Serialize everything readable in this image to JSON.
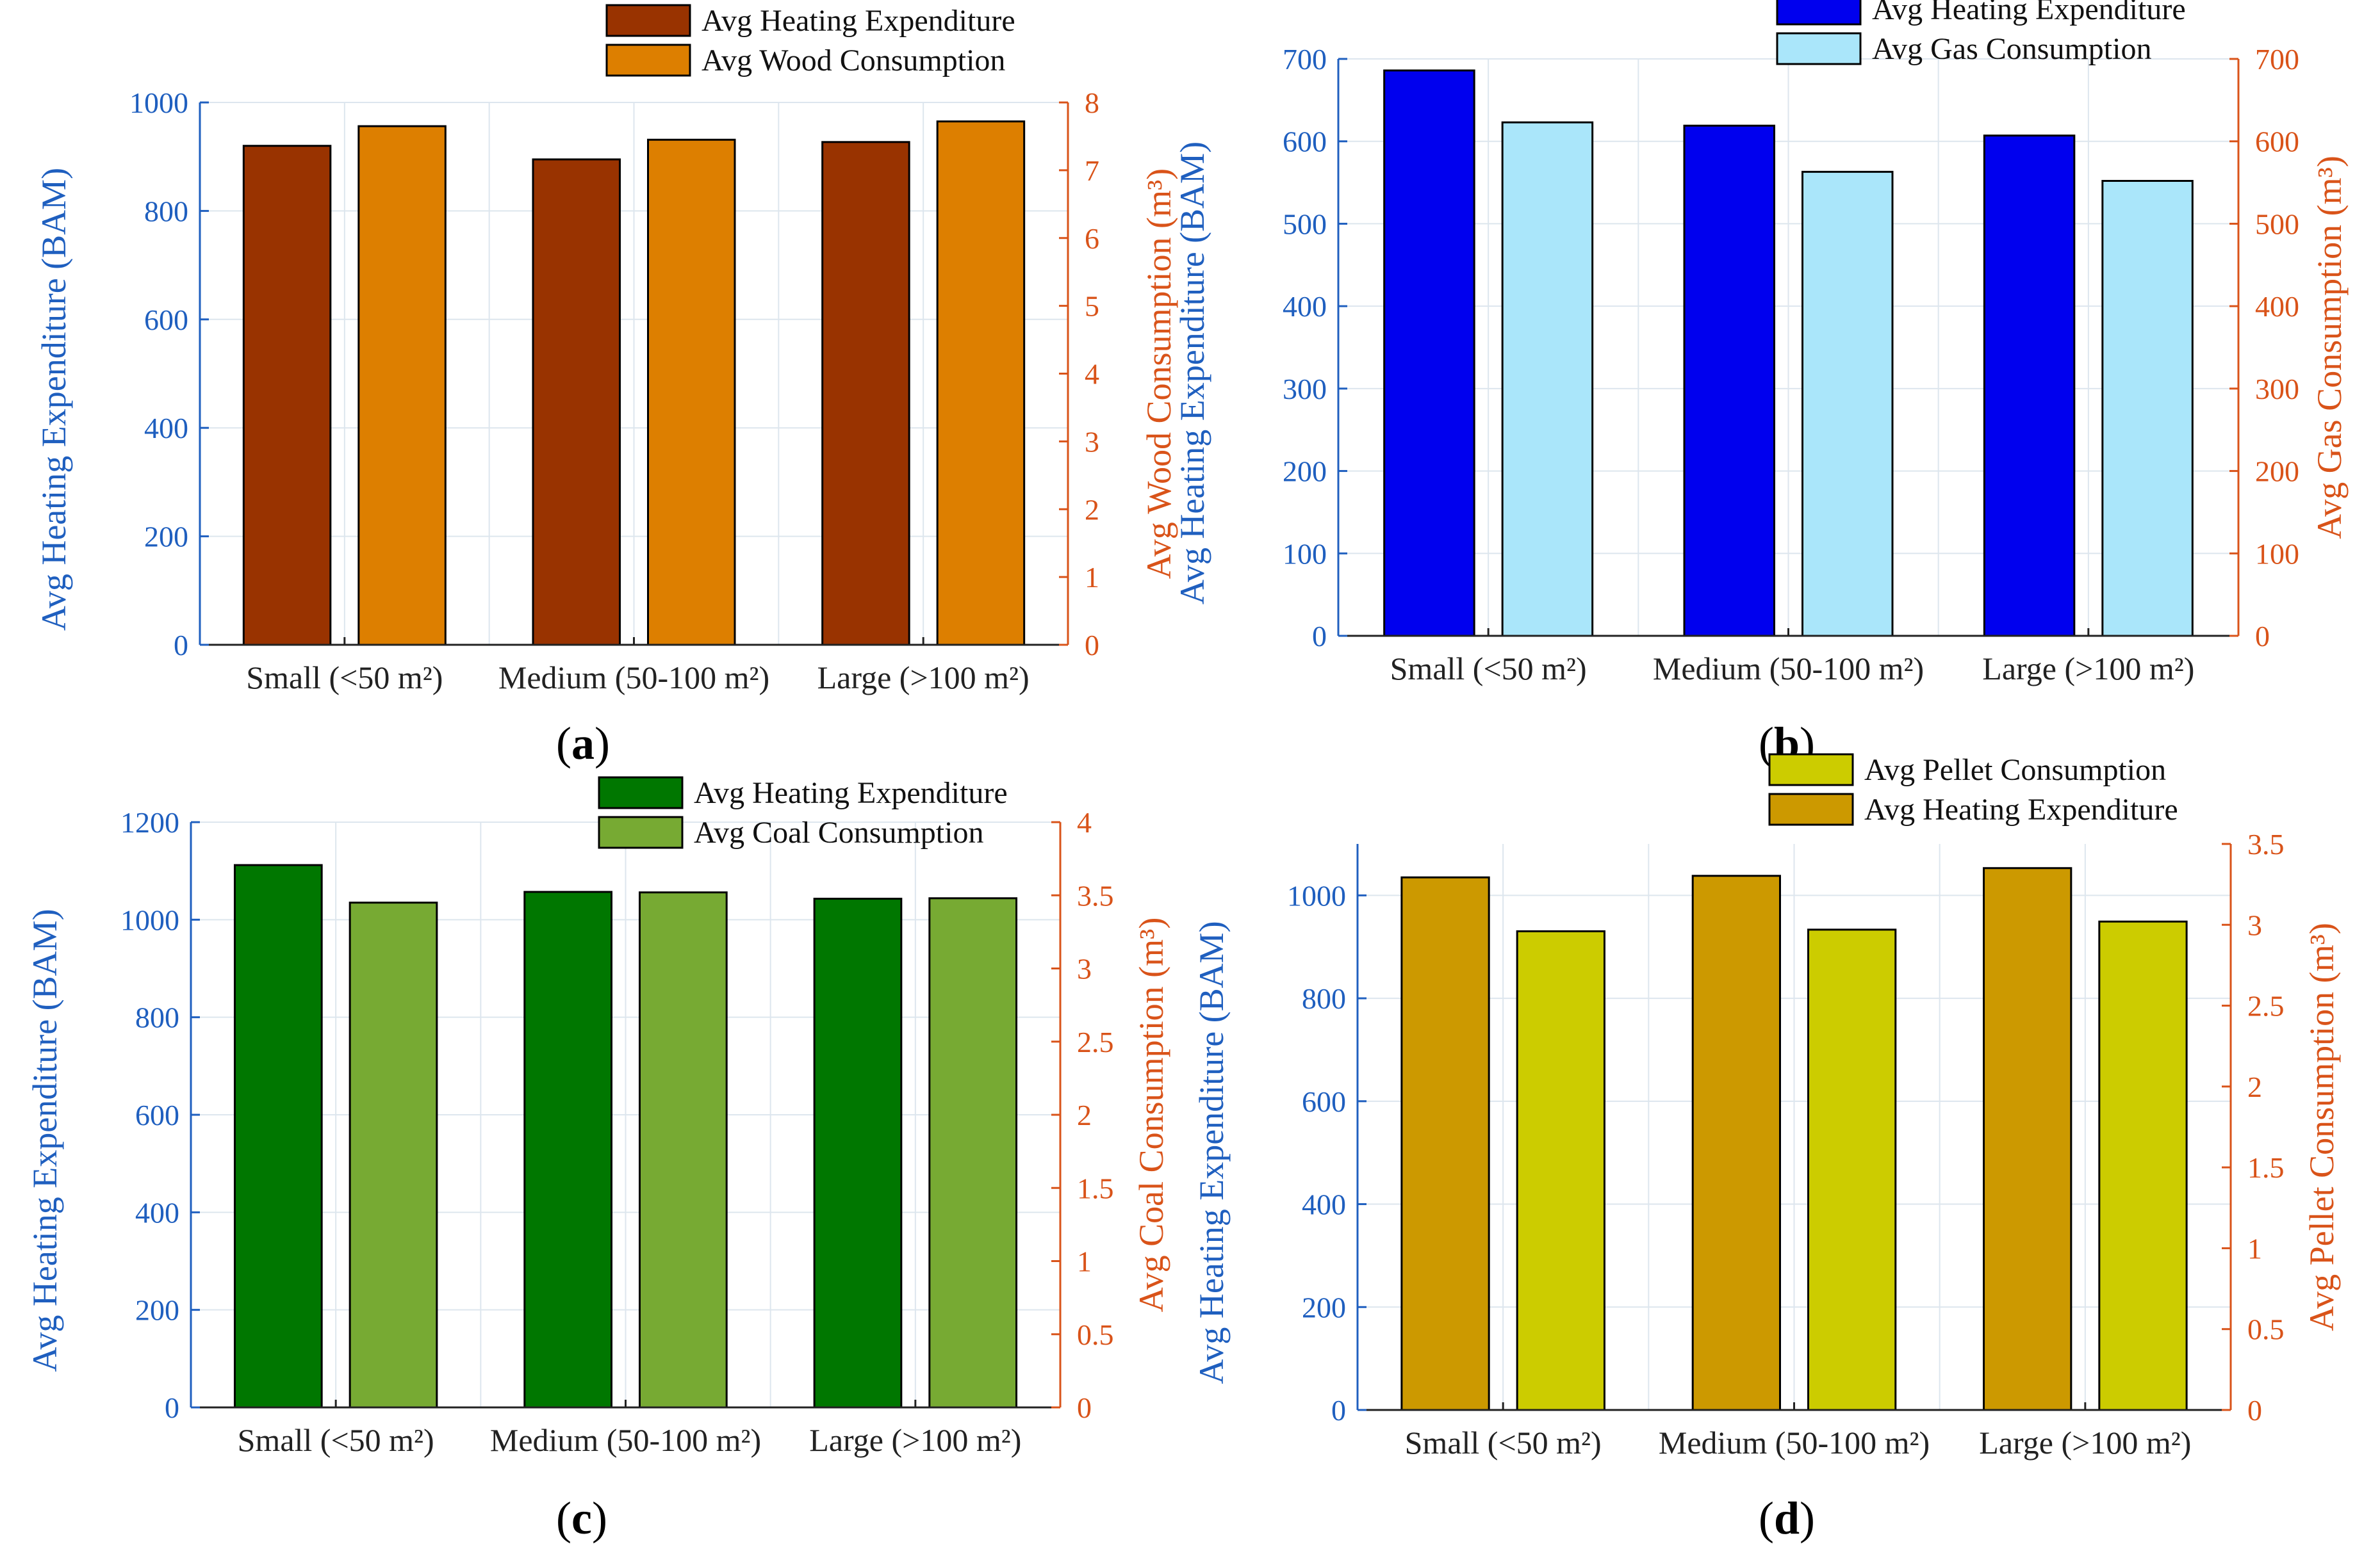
{
  "figure": {
    "panels": [
      {
        "caption_letter": "a"
      },
      {
        "caption_letter": "b"
      },
      {
        "caption_letter": "c"
      },
      {
        "caption_letter": "d"
      }
    ]
  },
  "chart_data": [
    {
      "type": "bar",
      "panel": "a",
      "categories": [
        "Small (<50 m²)",
        "Medium (50-100 m²)",
        "Large (>100 m²)"
      ],
      "ylabel_left": "Avg Heating Expenditure (BAM)",
      "ylabel_right": "Avg Wood Consumption (m³)",
      "ylim_left": [
        0,
        1000
      ],
      "ylim_right": [
        0,
        8
      ],
      "yticks_left": [
        "0",
        "200",
        "400",
        "600",
        "800",
        "1000"
      ],
      "yticks_right": [
        "0",
        "1",
        "2",
        "3",
        "4",
        "5",
        "6",
        "7",
        "8"
      ],
      "grid": true,
      "legend_position": "top-right",
      "left_axis_color": "#1f5fbf",
      "right_axis_color": "#d95319",
      "series": [
        {
          "name": "Avg Heating Expenditure",
          "axis": "left",
          "color": "#993300",
          "values": [
            920,
            895,
            927
          ]
        },
        {
          "name": "Avg Wood Consumption",
          "axis": "right",
          "color": "#dd7f00",
          "values": [
            7.65,
            7.45,
            7.72
          ]
        }
      ]
    },
    {
      "type": "bar",
      "panel": "b",
      "categories": [
        "Small (<50 m²)",
        "Medium (50-100 m²)",
        "Large (>100 m²)"
      ],
      "ylabel_left": "Avg Heating Expenditure (BAM)",
      "ylabel_right": "Avg Gas Consumption (m³)",
      "ylim_left": [
        0,
        700
      ],
      "ylim_right": [
        0,
        700
      ],
      "yticks_left": [
        "0",
        "100",
        "200",
        "300",
        "400",
        "500",
        "600",
        "700"
      ],
      "yticks_right": [
        "0",
        "100",
        "200",
        "300",
        "400",
        "500",
        "600",
        "700"
      ],
      "grid": true,
      "legend_position": "top-right",
      "left_axis_color": "#1f5fbf",
      "right_axis_color": "#d95319",
      "series": [
        {
          "name": "Avg Heating Expenditure",
          "axis": "left",
          "color": "#0000ee",
          "values": [
            686,
            619,
            607
          ]
        },
        {
          "name": "Avg Gas Consumption",
          "axis": "right",
          "color": "#aae6fa",
          "values": [
            623,
            563,
            552
          ]
        }
      ]
    },
    {
      "type": "bar",
      "panel": "c",
      "categories": [
        "Small (<50 m²)",
        "Medium (50-100 m²)",
        "Large (>100 m²)"
      ],
      "ylabel_left": "Avg Heating Expenditure (BAM)",
      "ylabel_right": "Avg Coal Consumption (m³)",
      "ylim_left": [
        0,
        1200
      ],
      "ylim_right": [
        0,
        4
      ],
      "yticks_left": [
        "0",
        "200",
        "400",
        "600",
        "800",
        "1000",
        "1200"
      ],
      "yticks_right": [
        "0",
        "0.5",
        "1",
        "1.5",
        "2",
        "2.5",
        "3",
        "3.5",
        "4"
      ],
      "grid": true,
      "legend_position": "top-right",
      "left_axis_color": "#1f5fbf",
      "right_axis_color": "#d95319",
      "series": [
        {
          "name": "Avg Heating Expenditure",
          "axis": "left",
          "color": "#007700",
          "values": [
            1112,
            1057,
            1043
          ]
        },
        {
          "name": "Avg Coal Consumption",
          "axis": "right",
          "color": "#77aa33",
          "values": [
            3.45,
            3.52,
            3.48
          ]
        }
      ]
    },
    {
      "type": "bar",
      "panel": "d",
      "categories": [
        "Small (<50 m²)",
        "Medium (50-100 m²)",
        "Large (>100 m²)"
      ],
      "ylabel_left": "Avg Heating Expenditure (BAM)",
      "ylabel_right": "Avg Pellet Consumption (m³)",
      "ylim_left": [
        0,
        1100
      ],
      "ylim_right": [
        0,
        3.5
      ],
      "yticks_left": [
        "0",
        "200",
        "400",
        "600",
        "800",
        "1000"
      ],
      "yticks_right": [
        "0",
        "0.5",
        "1",
        "1.5",
        "2",
        "2.5",
        "3",
        "3.5"
      ],
      "grid": true,
      "legend_position": "top-right",
      "left_axis_color": "#1f5fbf",
      "right_axis_color": "#d95319",
      "series": [
        {
          "name": "Avg Heating Expenditure",
          "axis": "left",
          "color": "#cc9900",
          "values": [
            1035,
            1038,
            1053
          ]
        },
        {
          "name": "Avg Pellet Consumption",
          "axis": "right",
          "color": "#cccc00",
          "values": [
            2.96,
            2.97,
            3.02
          ]
        }
      ],
      "legend_order": [
        1,
        0
      ]
    }
  ]
}
